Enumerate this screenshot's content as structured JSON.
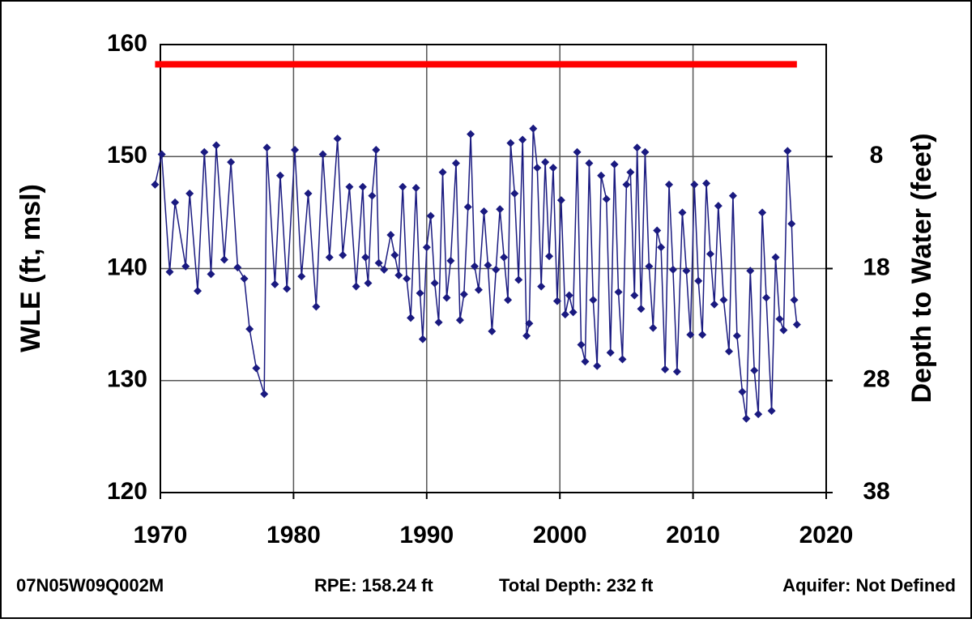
{
  "chart_data": {
    "type": "line",
    "ylabel": "WLE (ft, msl)",
    "y2label": "Depth to Water (feet)",
    "xlim": [
      1970,
      2020
    ],
    "xticks": [
      1970,
      1980,
      1990,
      2000,
      2010,
      2020
    ],
    "ylim": [
      120,
      160
    ],
    "yticks": [
      120,
      130,
      140,
      150,
      160
    ],
    "y2lim": [
      38,
      -2
    ],
    "y2ticks": [
      38,
      28,
      18,
      8
    ],
    "grid": true,
    "reference_line": {
      "x": [
        1969.6,
        2017.8
      ],
      "values": [
        158.24,
        158.24
      ],
      "color": "#ff0000"
    },
    "series": [
      {
        "color": "#1a1a80",
        "marker": "diamond",
        "x": [
          1969.6,
          1970.1,
          1970.7,
          1971.1,
          1971.9,
          1972.2,
          1972.8,
          1973.3,
          1973.8,
          1974.2,
          1974.8,
          1975.3,
          1975.8,
          1976.3,
          1976.7,
          1977.2,
          1977.8,
          1978.0,
          1978.6,
          1979.0,
          1979.5,
          1980.1,
          1980.6,
          1981.1,
          1981.7,
          1982.2,
          1982.7,
          1983.3,
          1983.7,
          1984.2,
          1984.7,
          1985.2,
          1985.4,
          1985.6,
          1985.9,
          1986.2,
          1986.4,
          1986.8,
          1987.3,
          1987.6,
          1987.9,
          1988.2,
          1988.5,
          1988.8,
          1989.2,
          1989.5,
          1989.7,
          1990.0,
          1990.3,
          1990.6,
          1990.9,
          1991.2,
          1991.5,
          1991.8,
          1992.2,
          1992.5,
          1992.8,
          1993.1,
          1993.3,
          1993.6,
          1993.9,
          1994.3,
          1994.6,
          1994.9,
          1995.2,
          1995.5,
          1995.8,
          1996.1,
          1996.3,
          1996.6,
          1996.9,
          1997.2,
          1997.5,
          1997.7,
          1998.0,
          1998.3,
          1998.6,
          1998.9,
          1999.2,
          1999.5,
          1999.8,
          2000.1,
          2000.4,
          2000.7,
          2001.0,
          2001.3,
          2001.6,
          2001.9,
          2002.2,
          2002.5,
          2002.8,
          2003.1,
          2003.5,
          2003.8,
          2004.1,
          2004.4,
          2004.7,
          2005.0,
          2005.3,
          2005.6,
          2005.8,
          2006.1,
          2006.4,
          2006.7,
          2007.0,
          2007.3,
          2007.6,
          2007.9,
          2008.2,
          2008.5,
          2008.8,
          2009.2,
          2009.5,
          2009.8,
          2010.1,
          2010.4,
          2010.7,
          2011.0,
          2011.3,
          2011.6,
          2011.9,
          2012.3,
          2012.7,
          2013.0,
          2013.3,
          2013.7,
          2014.0,
          2014.3,
          2014.6,
          2014.9,
          2015.2,
          2015.5,
          2015.9,
          2016.2,
          2016.5,
          2016.8,
          2017.1,
          2017.4,
          2017.6,
          2017.8
        ],
        "values": [
          147.5,
          150.2,
          139.7,
          145.9,
          140.2,
          146.7,
          138,
          150.4,
          139.5,
          151,
          140.8,
          149.5,
          140.1,
          139.1,
          134.6,
          131.1,
          128.8,
          150.8,
          138.6,
          148.3,
          138.2,
          150.6,
          139.3,
          146.7,
          136.6,
          150.2,
          141,
          151.6,
          141.2,
          147.3,
          138.4,
          147.3,
          141,
          138.7,
          146.5,
          150.6,
          140.5,
          139.9,
          143,
          141.2,
          139.4,
          147.3,
          139.1,
          135.6,
          147.2,
          137.8,
          133.7,
          141.9,
          144.7,
          138.7,
          135.2,
          148.6,
          137.4,
          140.7,
          149.4,
          135.4,
          137.7,
          145.5,
          152,
          140.2,
          138.1,
          145.1,
          140.3,
          134.4,
          139.9,
          145.3,
          141,
          137.2,
          151.2,
          146.7,
          139,
          151.5,
          134,
          135.1,
          152.5,
          149,
          138.4,
          149.5,
          141.1,
          149,
          137.1,
          146.1,
          135.9,
          137.6,
          136.1,
          150.4,
          133.2,
          131.7,
          149.4,
          137.2,
          131.3,
          148.3,
          146.2,
          132.5,
          149.3,
          137.9,
          131.9,
          147.5,
          148.6,
          137.6,
          150.8,
          136.4,
          150.4,
          140.2,
          134.7,
          143.4,
          141.9,
          131,
          147.5,
          139.9,
          130.8,
          145,
          139.8,
          134.1,
          147.5,
          138.9,
          134.1,
          147.6,
          141.3,
          136.8,
          145.6,
          137.2,
          132.6,
          146.5,
          134,
          129,
          126.6,
          139.8,
          130.9,
          127,
          145,
          137.4,
          127.3,
          141,
          135.5,
          134.5,
          150.5,
          144,
          137.2,
          135
        ]
      }
    ]
  },
  "footer": {
    "well_id": "07N05W09Q002M",
    "rpe": "RPE: 158.24 ft",
    "total_depth": "Total Depth: 232 ft",
    "aquifer": "Aquifer: Not Defined"
  }
}
